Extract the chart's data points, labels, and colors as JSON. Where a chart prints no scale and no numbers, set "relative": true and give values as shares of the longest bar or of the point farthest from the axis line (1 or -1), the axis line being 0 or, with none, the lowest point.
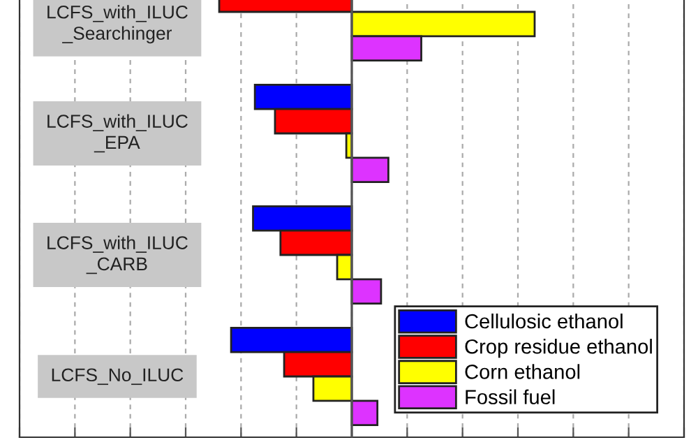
{
  "chart_data": {
    "type": "bar",
    "orientation": "horizontal",
    "relative": true,
    "categories": [
      "LCFS_with_ILUC\n_Searchinger",
      "LCFS_with_ILUC\n_EPA",
      "LCFS_with_ILUC\n_CARB",
      "LCFS_No_ILUC"
    ],
    "series": [
      {
        "name": "Cellulosic ethanol",
        "color": "#0000ff",
        "values": [
          null,
          -0.53,
          -0.54,
          -0.66
        ]
      },
      {
        "name": "Crop residue ethanol",
        "color": "#ff0000",
        "values": [
          -0.725,
          -0.42,
          -0.39,
          -0.37
        ]
      },
      {
        "name": "Corn ethanol",
        "color": "#ffff00",
        "values": [
          1,
          -0.03,
          -0.08,
          -0.21
        ]
      },
      {
        "name": "Fossil fuel",
        "color": "#dd33ff",
        "values": [
          0.38,
          0.2,
          0.16,
          0.14
        ]
      }
    ],
    "grid": "x",
    "legend": "bottom right"
  }
}
